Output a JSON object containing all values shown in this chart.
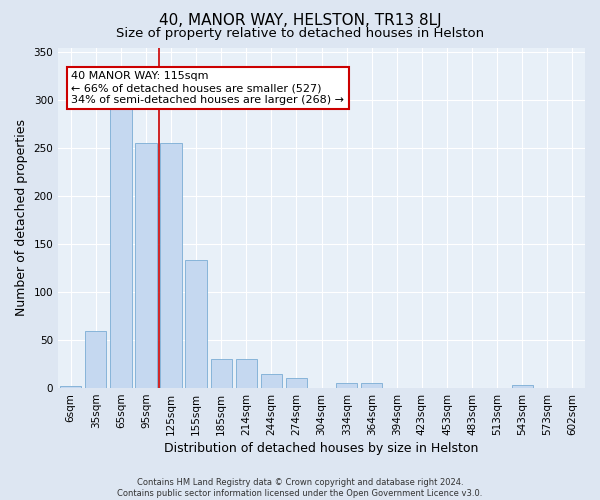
{
  "title": "40, MANOR WAY, HELSTON, TR13 8LJ",
  "subtitle": "Size of property relative to detached houses in Helston",
  "xlabel": "Distribution of detached houses by size in Helston",
  "ylabel": "Number of detached properties",
  "footer_line1": "Contains HM Land Registry data © Crown copyright and database right 2024.",
  "footer_line2": "Contains public sector information licensed under the Open Government Licence v3.0.",
  "categories": [
    "6sqm",
    "35sqm",
    "65sqm",
    "95sqm",
    "125sqm",
    "155sqm",
    "185sqm",
    "214sqm",
    "244sqm",
    "274sqm",
    "304sqm",
    "334sqm",
    "364sqm",
    "394sqm",
    "423sqm",
    "453sqm",
    "483sqm",
    "513sqm",
    "543sqm",
    "573sqm",
    "602sqm"
  ],
  "bar_values": [
    2,
    60,
    292,
    255,
    255,
    133,
    30,
    30,
    15,
    10,
    0,
    5,
    5,
    0,
    0,
    0,
    0,
    0,
    3,
    0,
    0
  ],
  "bar_color": "#c5d8f0",
  "bar_edge_color": "#7aadd4",
  "vline_color": "#cc0000",
  "vline_x_index": 4,
  "annotation_text_line1": "40 MANOR WAY: 115sqm",
  "annotation_text_line2": "← 66% of detached houses are smaller (527)",
  "annotation_text_line3": "34% of semi-detached houses are larger (268) →",
  "annotation_box_color": "#ffffff",
  "annotation_box_edge": "#cc0000",
  "ylim": [
    0,
    355
  ],
  "yticks": [
    0,
    50,
    100,
    150,
    200,
    250,
    300,
    350
  ],
  "bg_color": "#dde6f2",
  "plot_bg_color": "#e8f0f8",
  "grid_color": "#ffffff",
  "title_fontsize": 11,
  "subtitle_fontsize": 9.5,
  "tick_fontsize": 7.5,
  "ylabel_fontsize": 9,
  "xlabel_fontsize": 9,
  "footer_fontsize": 6,
  "annotation_fontsize": 8
}
